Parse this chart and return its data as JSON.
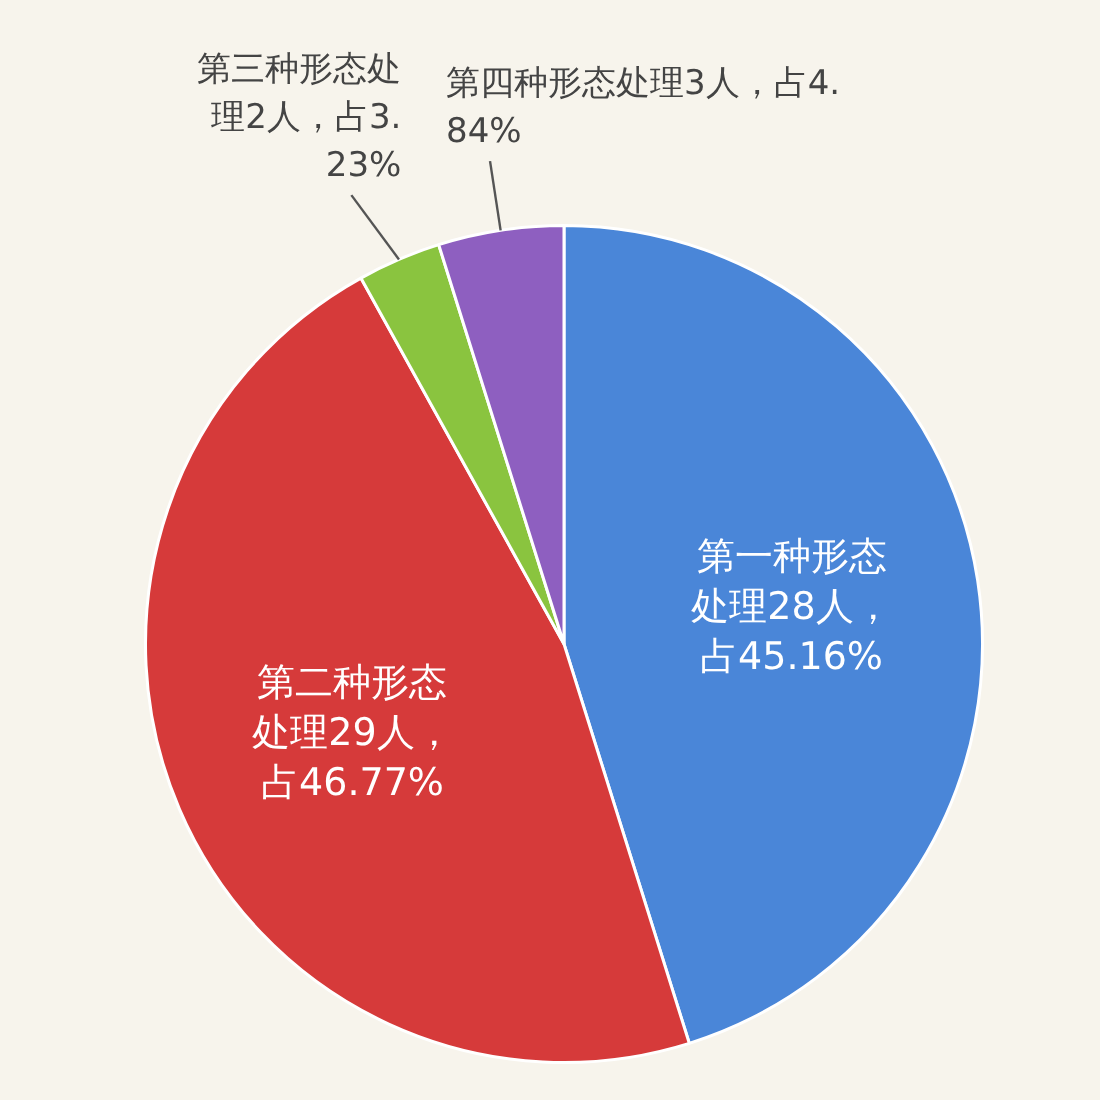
{
  "chart_data": {
    "type": "pie",
    "categories": [
      "第一种形态处理",
      "第二种形态处理",
      "第三种形态处理",
      "第四种形态处理"
    ],
    "values": [
      28,
      29,
      2,
      3
    ],
    "value_labels": [
      "28人，占45.16%",
      "29人，占46.77%",
      "2人，占3.23%",
      "3人，占4.84%"
    ],
    "colors": [
      "#4a86d8",
      "#d63a3a",
      "#8ac43f",
      "#8e5fc0"
    ],
    "legend": false
  }
}
